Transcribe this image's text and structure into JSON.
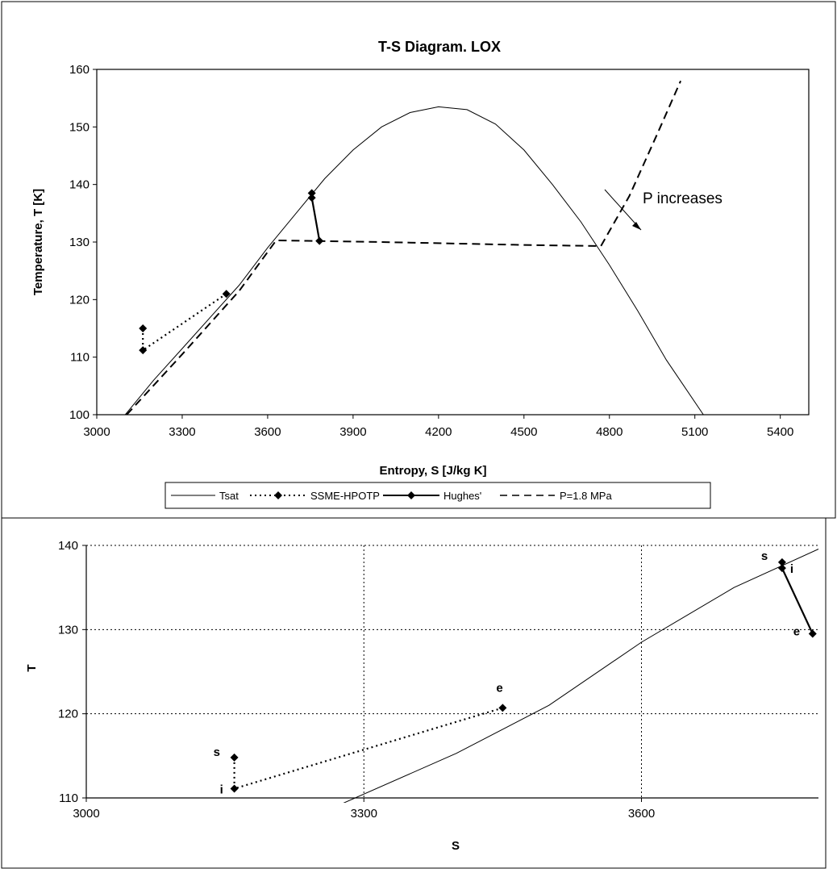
{
  "chart_data": [
    {
      "type": "line",
      "title": "T-S Diagram. LOX",
      "xlabel": "Entropy, S [J/kg K]",
      "ylabel": "Temperature, T [K]",
      "xlim": [
        3000,
        5500
      ],
      "ylim": [
        100,
        160
      ],
      "x_ticks": [
        "3000",
        "3300",
        "3600",
        "3900",
        "4200",
        "4500",
        "4800",
        "5100",
        "5400"
      ],
      "y_ticks": [
        "100",
        "110",
        "120",
        "130",
        "140",
        "150",
        "160"
      ],
      "grid": false,
      "legend_position": "bottom",
      "annotation": "P increases",
      "series": [
        {
          "name": "Tsat",
          "style": "solid",
          "points": [
            [
              3100,
              100
            ],
            [
              3200,
              106
            ],
            [
              3300,
              111.5
            ],
            [
              3400,
              117
            ],
            [
              3500,
              122.5
            ],
            [
              3600,
              129
            ],
            [
              3700,
              135
            ],
            [
              3800,
              141
            ],
            [
              3900,
              146
            ],
            [
              4000,
              150
            ],
            [
              4100,
              152.5
            ],
            [
              4200,
              153.5
            ],
            [
              4300,
              153
            ],
            [
              4400,
              150.5
            ],
            [
              4500,
              146
            ],
            [
              4600,
              140
            ],
            [
              4700,
              133.5
            ],
            [
              4800,
              126
            ],
            [
              4900,
              118
            ],
            [
              5000,
              109.5
            ],
            [
              5130,
              100
            ]
          ]
        },
        {
          "name": "SSME-HPOTP",
          "style": "dotted",
          "marker": "diamond",
          "points": [
            [
              3162,
              115
            ],
            [
              3162,
              111.2
            ],
            [
              3455,
              121
            ]
          ]
        },
        {
          "name": "Hughes'",
          "style": "solid",
          "marker": "diamond",
          "points": [
            [
              3755,
              138.5
            ],
            [
              3755,
              137.7
            ],
            [
              3782,
              130.2
            ]
          ]
        },
        {
          "name": "P=1.8 MPa",
          "style": "dashed",
          "points": [
            [
              3105,
              100
            ],
            [
              3300,
              110.5
            ],
            [
              3500,
              121.5
            ],
            [
              3630,
              130.3
            ],
            [
              4000,
              130
            ],
            [
              4500,
              129.5
            ],
            [
              4770,
              129.3
            ],
            [
              4870,
              138
            ],
            [
              4970,
              149
            ],
            [
              5050,
              158
            ]
          ]
        }
      ]
    },
    {
      "type": "line",
      "title": "",
      "xlabel": "S",
      "ylabel": "T",
      "xlim": [
        3000,
        3800
      ],
      "ylim": [
        110,
        140
      ],
      "x_ticks": [
        "3000",
        "3300",
        "3600"
      ],
      "y_ticks": [
        "110",
        "120",
        "130",
        "140"
      ],
      "grid": true,
      "series": [
        {
          "name": "Tsat",
          "style": "solid",
          "points": [
            [
              3270,
              109
            ],
            [
              3400,
              115.3
            ],
            [
              3500,
              121
            ],
            [
              3600,
              128.5
            ],
            [
              3700,
              135
            ],
            [
              3810,
              140.5
            ]
          ]
        },
        {
          "name": "SSME-HPOTP",
          "style": "dotted",
          "marker": "diamond",
          "points": [
            [
              3160,
              114.8
            ],
            [
              3160,
              111.1
            ],
            [
              3450,
              120.7
            ]
          ],
          "labels": [
            "s",
            "i",
            "e"
          ]
        },
        {
          "name": "Hughes'",
          "style": "solid",
          "marker": "diamond",
          "points": [
            [
              3752,
              138
            ],
            [
              3752,
              137.3
            ],
            [
              3785,
              129.5
            ]
          ],
          "labels": [
            "s",
            "i",
            "e"
          ]
        }
      ]
    }
  ]
}
